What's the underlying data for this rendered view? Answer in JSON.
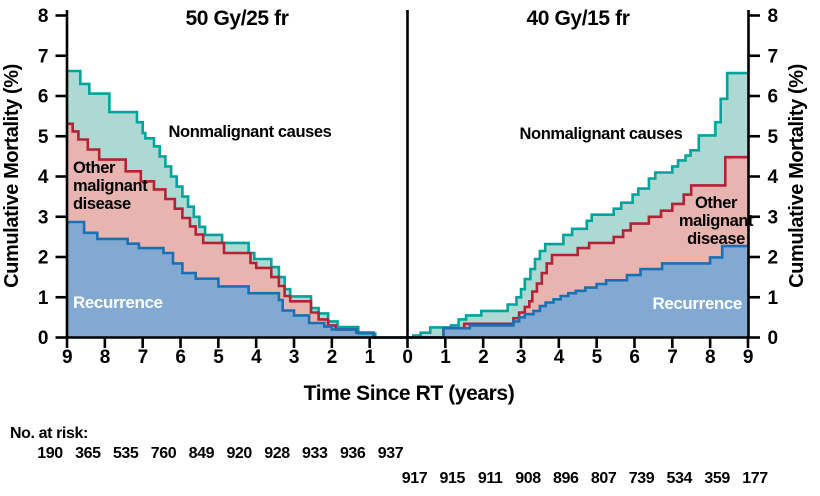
{
  "header": {
    "left_panel_title": "50 Gy/25 fr",
    "right_panel_title": "40 Gy/15 fr"
  },
  "axes": {
    "y_left_label": "Cumulative Mortality (%)",
    "y_right_label": "Cumulative Mortality (%)",
    "x_label": "Time Since RT (years)",
    "y_ticks": [
      0,
      1,
      2,
      3,
      4,
      5,
      6,
      7,
      8
    ],
    "x_ticks_left": [
      9,
      8,
      7,
      6,
      5,
      4,
      3,
      2,
      1
    ],
    "x_tick_center": "0",
    "x_ticks_right": [
      1,
      2,
      3,
      4,
      5,
      6,
      7,
      8,
      9
    ]
  },
  "annotations": {
    "left": {
      "nonmalignant": "Nonmalignant causes",
      "other_lines": [
        "Other",
        "malignant",
        "disease"
      ],
      "recurrence": "Recurrence"
    },
    "right": {
      "nonmalignant": "Nonmalignant causes",
      "other_lines": [
        "Other",
        "malignant",
        "disease"
      ],
      "recurrence": "Recurrence"
    }
  },
  "at_risk": {
    "label": "No. at risk:"
  },
  "colors": {
    "axis": "#000000",
    "recurrence_line": "#1b70b4",
    "recurrence_fill": "#82a9d1",
    "other_line": "#b42235",
    "other_fill": "#e7b4b0",
    "nonmalignant_line": "#00a49c",
    "nonmalignant_fill": "#aed8d2",
    "recurrence_label_text": "#ffffff"
  },
  "chart_data": {
    "type": "area",
    "subtype": "mirrored stacked step cumulative-incidence curves (two panels sharing t=0 at center)",
    "title": "Cumulative mortality by cause after radiotherapy, 50 Gy/25 fr vs 40 Gy/15 fr",
    "x": {
      "label": "Time Since RT (years)",
      "range": [
        0,
        9
      ],
      "note": "left panel time increases right-to-left; right panel left-to-right"
    },
    "y": {
      "label": "Cumulative Mortality (%)",
      "range": [
        0,
        8
      ],
      "grid": false
    },
    "step_semantics": "each series is a cumulative stacked boundary: Recurrence = recurrence only; Other malignant disease = recurrence + other malignant; Nonmalignant causes = all causes. steps = [time_years, percent] breakpoints, value holds until next breakpoint",
    "panels": [
      {
        "title": "50 Gy/25 fr",
        "side": "left",
        "at_risk": [
          190,
          365,
          535,
          760,
          849,
          920,
          928,
          933,
          936,
          937
        ],
        "series": [
          {
            "name": "Recurrence",
            "steps": [
              [
                0,
                0
              ],
              [
                0.9,
                0.12
              ],
              [
                1.35,
                0.2
              ],
              [
                2.0,
                0.27
              ],
              [
                2.2,
                0.36
              ],
              [
                2.6,
                0.55
              ],
              [
                3.0,
                0.67
              ],
              [
                3.3,
                0.93
              ],
              [
                3.4,
                1.1
              ],
              [
                4.2,
                1.27
              ],
              [
                5.0,
                1.46
              ],
              [
                5.6,
                1.6
              ],
              [
                5.95,
                1.84
              ],
              [
                6.2,
                2.1
              ],
              [
                6.45,
                2.22
              ],
              [
                7.1,
                2.33
              ],
              [
                7.4,
                2.45
              ],
              [
                8.2,
                2.6
              ],
              [
                8.55,
                2.87
              ]
            ]
          },
          {
            "name": "Other malignant disease",
            "steps": [
              [
                0,
                0
              ],
              [
                0.9,
                0.12
              ],
              [
                1.35,
                0.2
              ],
              [
                1.9,
                0.3
              ],
              [
                2.1,
                0.45
              ],
              [
                2.35,
                0.62
              ],
              [
                2.55,
                0.9
              ],
              [
                3.1,
                1.03
              ],
              [
                3.25,
                1.28
              ],
              [
                3.4,
                1.5
              ],
              [
                3.6,
                1.73
              ],
              [
                4.0,
                1.85
              ],
              [
                4.15,
                2.1
              ],
              [
                4.85,
                2.35
              ],
              [
                5.4,
                2.56
              ],
              [
                5.6,
                2.76
              ],
              [
                5.75,
                2.97
              ],
              [
                5.95,
                3.2
              ],
              [
                6.15,
                3.44
              ],
              [
                6.4,
                3.68
              ],
              [
                6.7,
                3.88
              ],
              [
                7.05,
                4.13
              ],
              [
                7.45,
                4.42
              ],
              [
                8.15,
                4.67
              ],
              [
                8.45,
                4.92
              ],
              [
                8.7,
                5.12
              ],
              [
                8.85,
                5.31
              ]
            ]
          },
          {
            "name": "Nonmalignant causes",
            "steps": [
              [
                0,
                0
              ],
              [
                0.85,
                0.1
              ],
              [
                1.3,
                0.26
              ],
              [
                1.85,
                0.4
              ],
              [
                2.1,
                0.6
              ],
              [
                2.35,
                0.73
              ],
              [
                2.55,
                1.02
              ],
              [
                3.1,
                1.2
              ],
              [
                3.25,
                1.5
              ],
              [
                3.4,
                1.75
              ],
              [
                3.6,
                1.95
              ],
              [
                4.05,
                2.1
              ],
              [
                4.2,
                2.35
              ],
              [
                4.9,
                2.55
              ],
              [
                5.35,
                2.75
              ],
              [
                5.5,
                3.0
              ],
              [
                5.65,
                3.25
              ],
              [
                5.8,
                3.5
              ],
              [
                5.95,
                3.75
              ],
              [
                6.1,
                4.0
              ],
              [
                6.25,
                4.25
              ],
              [
                6.4,
                4.5
              ],
              [
                6.55,
                4.75
              ],
              [
                6.7,
                4.95
              ],
              [
                6.93,
                5.08
              ],
              [
                7.0,
                5.35
              ],
              [
                7.15,
                5.6
              ],
              [
                7.88,
                6.06
              ],
              [
                8.41,
                6.3
              ],
              [
                8.65,
                6.62
              ]
            ]
          }
        ]
      },
      {
        "title": "40 Gy/15 fr",
        "side": "right",
        "at_risk": [
          917,
          915,
          911,
          908,
          896,
          807,
          739,
          534,
          359,
          177
        ],
        "series": [
          {
            "name": "Recurrence",
            "steps": [
              [
                0,
                0
              ],
              [
                0.95,
                0.23
              ],
              [
                1.65,
                0.3
              ],
              [
                2.8,
                0.4
              ],
              [
                2.95,
                0.5
              ],
              [
                3.1,
                0.58
              ],
              [
                3.33,
                0.66
              ],
              [
                3.5,
                0.78
              ],
              [
                3.65,
                0.87
              ],
              [
                3.86,
                0.95
              ],
              [
                4.05,
                1.03
              ],
              [
                4.25,
                1.1
              ],
              [
                4.45,
                1.16
              ],
              [
                4.7,
                1.24
              ],
              [
                5.0,
                1.33
              ],
              [
                5.25,
                1.42
              ],
              [
                5.8,
                1.55
              ],
              [
                6.16,
                1.7
              ],
              [
                6.73,
                1.84
              ],
              [
                8.0,
                1.99
              ],
              [
                8.32,
                2.27
              ]
            ]
          },
          {
            "name": "Other malignant disease",
            "steps": [
              [
                0,
                0
              ],
              [
                0.95,
                0.23
              ],
              [
                1.5,
                0.34
              ],
              [
                2.8,
                0.48
              ],
              [
                2.95,
                0.62
              ],
              [
                3.1,
                0.76
              ],
              [
                3.22,
                0.9
              ],
              [
                3.3,
                1.14
              ],
              [
                3.42,
                1.34
              ],
              [
                3.55,
                1.6
              ],
              [
                3.68,
                1.84
              ],
              [
                3.82,
                2.05
              ],
              [
                4.5,
                2.22
              ],
              [
                4.8,
                2.35
              ],
              [
                5.45,
                2.5
              ],
              [
                5.7,
                2.66
              ],
              [
                5.9,
                2.83
              ],
              [
                6.38,
                3.0
              ],
              [
                6.7,
                3.15
              ],
              [
                7.0,
                3.32
              ],
              [
                7.3,
                3.55
              ],
              [
                7.5,
                3.78
              ],
              [
                8.4,
                4.48
              ]
            ]
          },
          {
            "name": "Nonmalignant causes",
            "steps": [
              [
                0,
                0
              ],
              [
                0.15,
                0.05
              ],
              [
                0.35,
                0.12
              ],
              [
                0.6,
                0.25
              ],
              [
                1.15,
                0.3
              ],
              [
                1.35,
                0.45
              ],
              [
                1.55,
                0.55
              ],
              [
                1.95,
                0.66
              ],
              [
                2.65,
                0.82
              ],
              [
                2.88,
                1.0
              ],
              [
                3.0,
                1.2
              ],
              [
                3.1,
                1.45
              ],
              [
                3.25,
                1.7
              ],
              [
                3.37,
                1.95
              ],
              [
                3.5,
                2.15
              ],
              [
                3.64,
                2.32
              ],
              [
                4.12,
                2.55
              ],
              [
                4.35,
                2.7
              ],
              [
                4.74,
                2.9
              ],
              [
                4.87,
                3.05
              ],
              [
                5.45,
                3.2
              ],
              [
                5.65,
                3.35
              ],
              [
                5.95,
                3.55
              ],
              [
                6.1,
                3.7
              ],
              [
                6.38,
                3.95
              ],
              [
                6.55,
                4.1
              ],
              [
                7.0,
                4.25
              ],
              [
                7.15,
                4.4
              ],
              [
                7.35,
                4.52
              ],
              [
                7.48,
                4.65
              ],
              [
                7.7,
                5.02
              ],
              [
                8.14,
                5.35
              ],
              [
                8.28,
                5.93
              ],
              [
                8.45,
                6.57
              ]
            ]
          }
        ]
      }
    ],
    "legend_position": "labels inside plot areas"
  }
}
